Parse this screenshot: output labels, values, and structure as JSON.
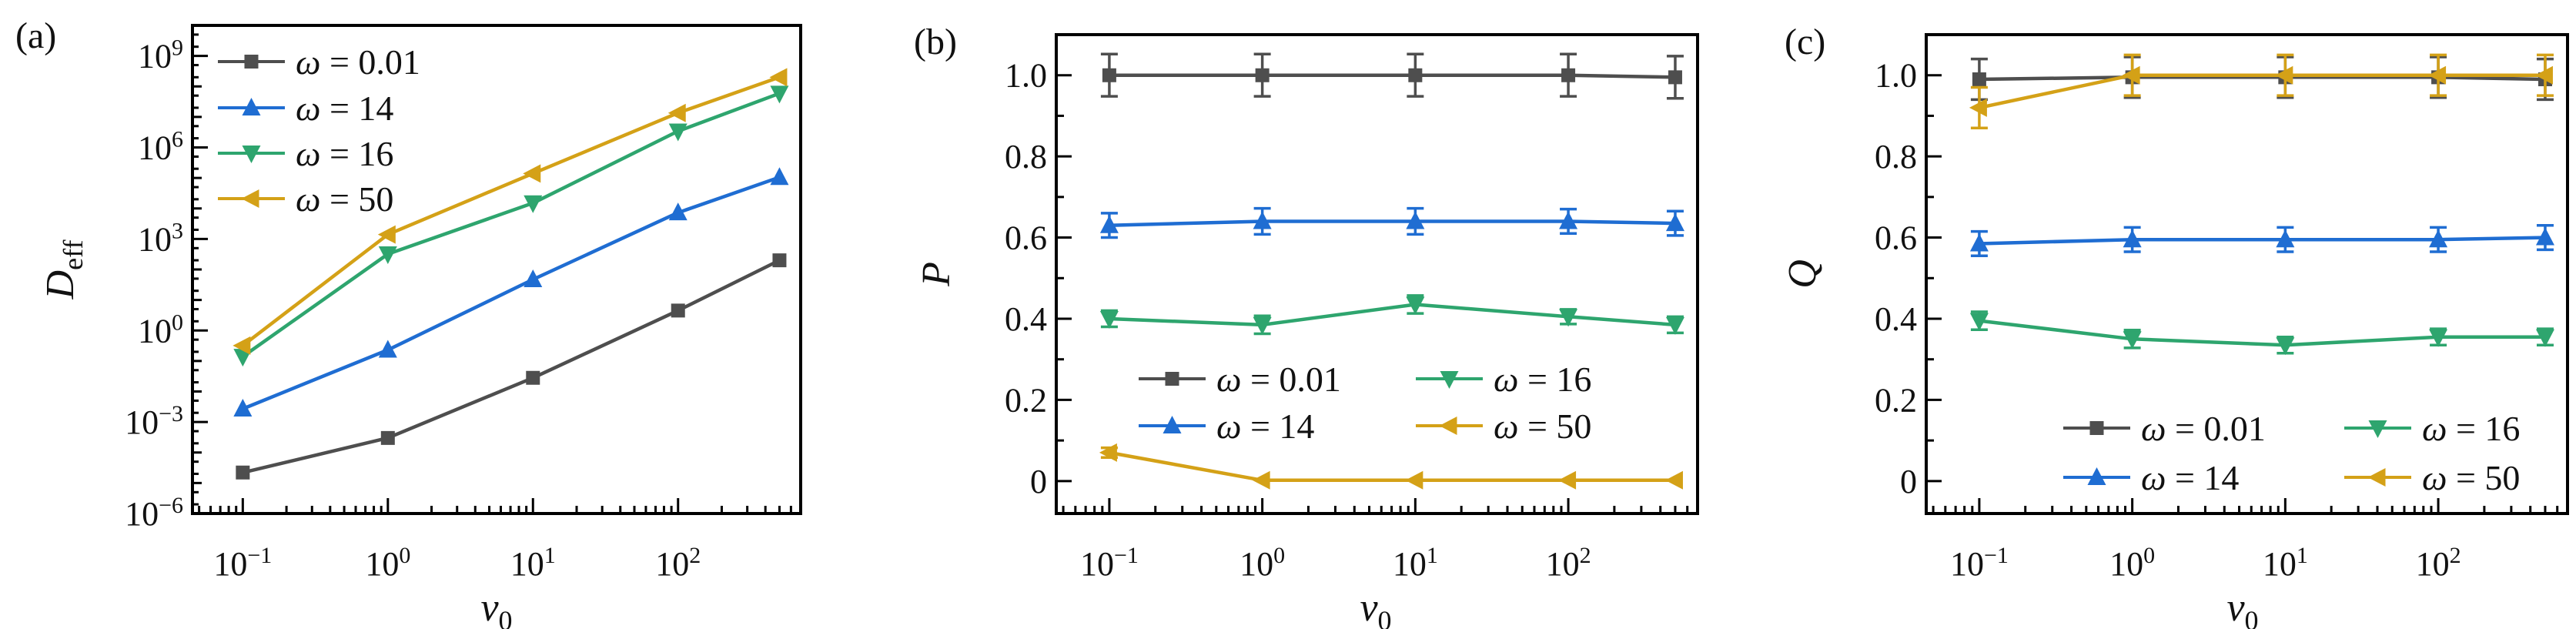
{
  "figure": {
    "background": "#ffffff",
    "axis_color": "#000000",
    "text_color": "#111111",
    "panel_labels": [
      "(a)",
      "(b)",
      "(c)"
    ]
  },
  "chart_data": [
    {
      "type": "line",
      "panel_label": "(a)",
      "x_scale": "log",
      "y_scale": "log",
      "xlabel": {
        "main": "v",
        "sub": "0"
      },
      "ylabel": {
        "main": "D",
        "sub": "eff"
      },
      "xlim": [
        0.045,
        700
      ],
      "ylim": [
        1e-06,
        10000000000.0
      ],
      "x_tick_exponents": [
        -1,
        0,
        1,
        2
      ],
      "y_tick_exponents": [
        -6,
        -3,
        0,
        3,
        6,
        9
      ],
      "grid": false,
      "legend": {
        "position": "upper-left",
        "columns": 1
      },
      "x": [
        0.1,
        1,
        10,
        100,
        500
      ],
      "series": [
        {
          "label": "ω = 0.01",
          "marker": "square",
          "color": "#4e4e4e",
          "values": [
            2.2e-05,
            0.0003,
            0.028,
            4.5,
            200.0
          ]
        },
        {
          "label": "ω = 14",
          "marker": "triangle-up",
          "color": "#1f6dd2",
          "values": [
            0.0027,
            0.23,
            47,
            7300.0,
            105000.0
          ]
        },
        {
          "label": "ω = 16",
          "marker": "triangle-down",
          "color": "#2ea56e",
          "values": [
            0.14,
            320.0,
            15000.0,
            3400000.0,
            59000000.0
          ]
        },
        {
          "label": "ω = 50",
          "marker": "triangle-left",
          "color": "#d4a117",
          "values": [
            0.32,
            1400.0,
            140000.0,
            13500000.0,
            200000000.0
          ]
        }
      ]
    },
    {
      "type": "line",
      "panel_label": "(b)",
      "x_scale": "log",
      "y_scale": "linear",
      "xlabel": {
        "main": "v",
        "sub": "0"
      },
      "ylabel": {
        "main": "P",
        "sub": ""
      },
      "xlim": [
        0.045,
        700
      ],
      "ylim": [
        -0.08,
        1.1
      ],
      "x_tick_exponents": [
        -1,
        0,
        1,
        2
      ],
      "y_ticks": [
        0,
        0.2,
        0.4,
        0.6,
        0.8,
        1.0
      ],
      "y_tick_labels": [
        "0",
        "0.2",
        "0.4",
        "0.6",
        "0.8",
        "1.0"
      ],
      "grid": false,
      "legend": {
        "position": "lower-center",
        "columns": 2
      },
      "x": [
        0.1,
        1,
        10,
        100,
        500
      ],
      "series": [
        {
          "label": "ω = 0.01",
          "marker": "square",
          "color": "#4e4e4e",
          "values": [
            1.0,
            1.0,
            1.0,
            1.0,
            0.995
          ],
          "yerr": [
            0.052,
            0.052,
            0.052,
            0.052,
            0.052
          ]
        },
        {
          "label": "ω = 14",
          "marker": "triangle-up",
          "color": "#1f6dd2",
          "values": [
            0.63,
            0.64,
            0.64,
            0.64,
            0.635
          ],
          "yerr": [
            0.03,
            0.032,
            0.032,
            0.03,
            0.03
          ]
        },
        {
          "label": "ω = 16",
          "marker": "triangle-down",
          "color": "#2ea56e",
          "values": [
            0.4,
            0.385,
            0.435,
            0.405,
            0.385
          ],
          "yerr": [
            0.02,
            0.022,
            0.022,
            0.018,
            0.02
          ]
        },
        {
          "label": "ω = 50",
          "marker": "triangle-left",
          "color": "#d4a117",
          "values": [
            0.07,
            0.002,
            0.002,
            0.002,
            0.002
          ],
          "yerr": [
            0.012,
            0,
            0,
            0,
            0
          ]
        }
      ]
    },
    {
      "type": "line",
      "panel_label": "(c)",
      "x_scale": "log",
      "y_scale": "linear",
      "xlabel": {
        "main": "v",
        "sub": "0"
      },
      "ylabel": {
        "main": "Q",
        "sub": ""
      },
      "xlim": [
        0.045,
        700
      ],
      "ylim": [
        -0.08,
        1.1
      ],
      "x_tick_exponents": [
        -1,
        0,
        1,
        2
      ],
      "y_ticks": [
        0,
        0.2,
        0.4,
        0.6,
        0.8,
        1.0
      ],
      "y_tick_labels": [
        "0",
        "0.2",
        "0.4",
        "0.6",
        "0.8",
        "1.0"
      ],
      "grid": false,
      "legend": {
        "position": "lower-center",
        "columns": 2
      },
      "x": [
        0.1,
        1,
        10,
        100,
        500
      ],
      "series": [
        {
          "label": "ω = 0.01",
          "marker": "square",
          "color": "#4e4e4e",
          "values": [
            0.99,
            0.995,
            0.995,
            0.995,
            0.99
          ],
          "yerr": [
            0.05,
            0.05,
            0.05,
            0.05,
            0.05
          ]
        },
        {
          "label": "ω = 14",
          "marker": "triangle-up",
          "color": "#1f6dd2",
          "values": [
            0.585,
            0.595,
            0.595,
            0.595,
            0.6
          ],
          "yerr": [
            0.03,
            0.03,
            0.03,
            0.03,
            0.03
          ]
        },
        {
          "label": "ω = 16",
          "marker": "triangle-down",
          "color": "#2ea56e",
          "values": [
            0.395,
            0.35,
            0.335,
            0.355,
            0.355
          ],
          "yerr": [
            0.022,
            0.022,
            0.02,
            0.02,
            0.02
          ]
        },
        {
          "label": "ω = 50",
          "marker": "triangle-left",
          "color": "#d4a117",
          "values": [
            0.92,
            1.0,
            1.0,
            1.0,
            1.0
          ],
          "yerr": [
            0.05,
            0.05,
            0.05,
            0.05,
            0.05
          ]
        }
      ]
    }
  ]
}
